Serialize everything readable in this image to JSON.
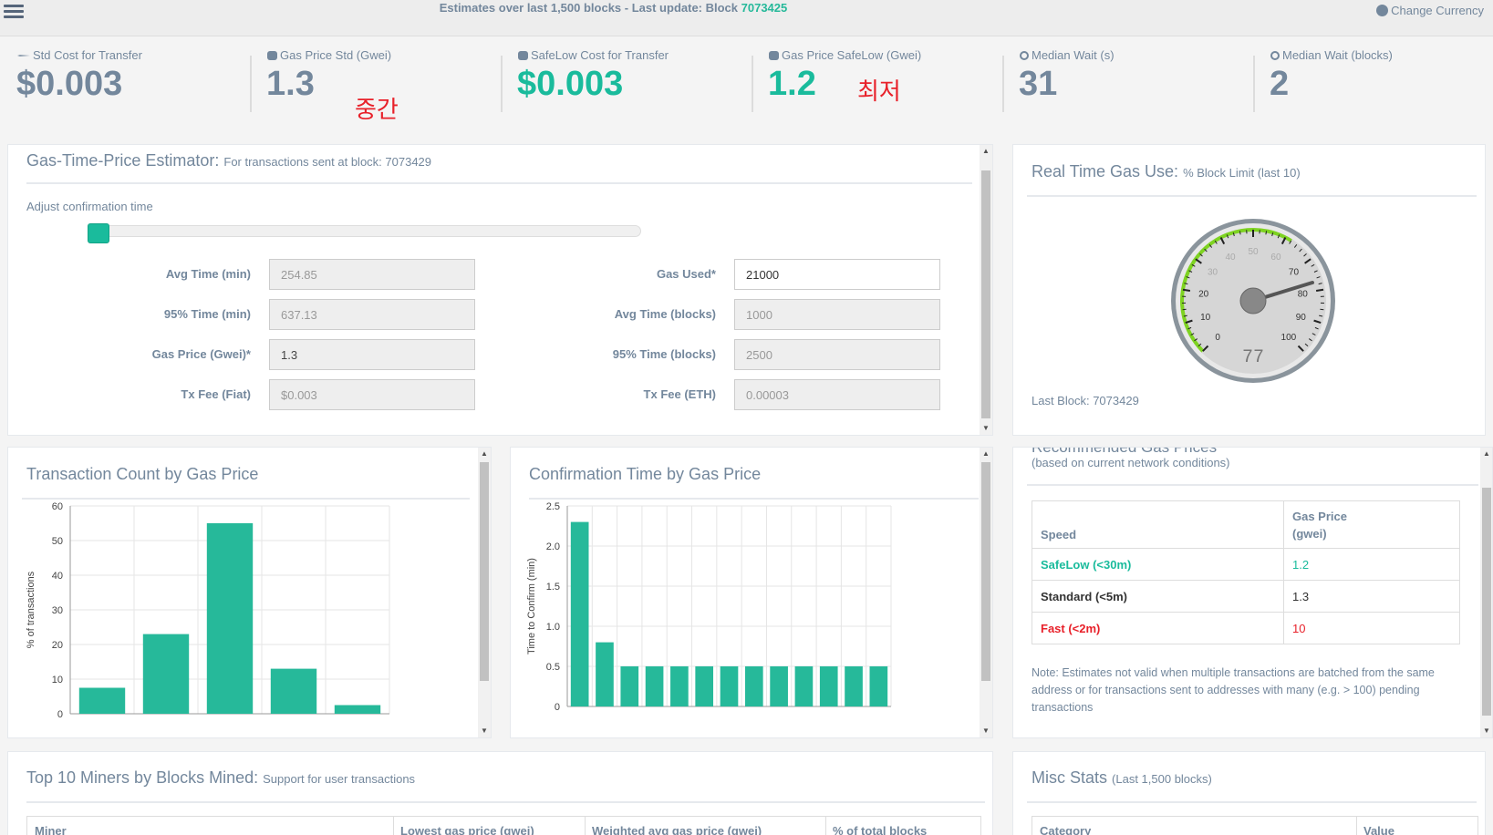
{
  "topbar": {
    "title_prefix": "Estimates over last 1,500 blocks - Last update: Block",
    "block": "7073425",
    "currency_label": "Change Currency"
  },
  "tiles": [
    {
      "icon": "paper-plane-icon",
      "label": "Std Cost for Transfer",
      "value": "$0.003"
    },
    {
      "icon": "cubes-icon",
      "label": "Gas Price Std (Gwei)",
      "value": "1.3"
    },
    {
      "icon": "cubes-icon",
      "label": "SafeLow Cost for Transfer",
      "value": "$0.003"
    },
    {
      "icon": "cubes-icon",
      "label": "Gas Price SafeLow (Gwei)",
      "value": "1.2"
    },
    {
      "icon": "clock-icon",
      "label": "Median Wait (s)",
      "value": "31"
    },
    {
      "icon": "clock-icon",
      "label": "Median Wait (blocks)",
      "value": "2"
    }
  ],
  "annotations": {
    "middle": "중간",
    "lowest": "최저"
  },
  "estimator": {
    "title": "Gas-Time-Price Estimator:",
    "subtitle": "For transactions sent at block: 7073429",
    "adjust_label": "Adjust confirmation time",
    "slider_value": 0.0,
    "left_fields": [
      {
        "label": "Avg Time (min)",
        "value": "254.85"
      },
      {
        "label": "95% Time (min)",
        "value": "637.13"
      },
      {
        "label": "Gas Price (Gwei)*",
        "value": "1.3"
      },
      {
        "label": "Tx Fee (Fiat)",
        "value": "$0.003"
      }
    ],
    "right_fields": [
      {
        "label": "Gas Used*",
        "value": "21000"
      },
      {
        "label": "Avg Time (blocks)",
        "value": "1000"
      },
      {
        "label": "95% Time (blocks)",
        "value": "2500"
      },
      {
        "label": "Tx Fee (ETH)",
        "value": "0.00003"
      }
    ]
  },
  "gas_use": {
    "title": "Real Time Gas Use:",
    "subtitle": "% Block Limit (last 10)",
    "gauge_value": 77,
    "gauge_ticks": [
      "0",
      "10",
      "20",
      "30",
      "40",
      "50",
      "60",
      "70",
      "80",
      "90",
      "100"
    ],
    "last_block": "Last Block: 7073429"
  },
  "tx_count": {
    "title": "Transaction Count by Gas Price",
    "chart_data": {
      "type": "bar",
      "ylabel": "% of transactions",
      "ylim": [
        0,
        60
      ],
      "yticks": [
        "0",
        "10",
        "20",
        "30",
        "40",
        "50",
        "60"
      ],
      "values": [
        7.5,
        23,
        55,
        13,
        2.5
      ]
    }
  },
  "conf_time": {
    "title": "Confirmation Time by Gas Price",
    "chart_data": {
      "type": "bar",
      "ylabel": "Time to Confirm (min)",
      "ylim": [
        0,
        2.5
      ],
      "yticks": [
        "0",
        "0.5",
        "1.0",
        "1.5",
        "2.0",
        "2.5"
      ],
      "values": [
        2.3,
        0.8,
        0.5,
        0.5,
        0.5,
        0.5,
        0.5,
        0.5,
        0.5,
        0.5,
        0.5,
        0.5,
        0.5
      ]
    }
  },
  "recommended": {
    "title": "Recommended Gas Prices",
    "subtitle": "(based on current network conditions)",
    "headers": [
      "Speed",
      "Gas Price",
      "(gwei)"
    ],
    "rows": [
      {
        "speed": "SafeLow (<30m)",
        "price": "1.2"
      },
      {
        "speed": "Standard (<5m)",
        "price": "1.3"
      },
      {
        "speed": "Fast (<2m)",
        "price": "10"
      }
    ],
    "note": "Note: Estimates not valid when multiple transactions are batched from the same address or for transactions sent to addresses with many (e.g. > 100) pending transactions",
    "colors": {
      "safelow": "#1abb9c",
      "fast": "#e8212a"
    }
  },
  "miners": {
    "title": "Top 10 Miners by Blocks Mined:",
    "subtitle": "Support for user transactions",
    "headers": [
      "Miner",
      "Lowest gas price (gwei)",
      "Weighted avg gas price (gwei)",
      "% of total blocks"
    ]
  },
  "misc": {
    "title": "Misc Stats",
    "subtitle": "(Last 1,500 blocks)",
    "headers": [
      "Category",
      "Value"
    ]
  },
  "colors": {
    "accent": "#1abb9c",
    "text": "#73879c"
  }
}
